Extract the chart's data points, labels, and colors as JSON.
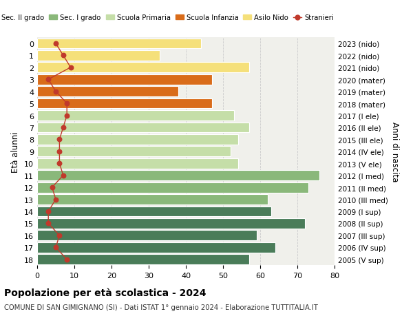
{
  "ages": [
    18,
    17,
    16,
    15,
    14,
    13,
    12,
    11,
    10,
    9,
    8,
    7,
    6,
    5,
    4,
    3,
    2,
    1,
    0
  ],
  "right_labels": [
    "2005 (V sup)",
    "2006 (IV sup)",
    "2007 (III sup)",
    "2008 (II sup)",
    "2009 (I sup)",
    "2010 (III med)",
    "2011 (II med)",
    "2012 (I med)",
    "2013 (V ele)",
    "2014 (IV ele)",
    "2015 (III ele)",
    "2016 (II ele)",
    "2017 (I ele)",
    "2018 (mater)",
    "2019 (mater)",
    "2020 (mater)",
    "2021 (nido)",
    "2022 (nido)",
    "2023 (nido)"
  ],
  "bar_values": [
    57,
    64,
    59,
    72,
    63,
    62,
    73,
    76,
    54,
    52,
    54,
    57,
    53,
    47,
    38,
    47,
    57,
    33,
    44
  ],
  "bar_colors": [
    "#4a7c59",
    "#4a7c59",
    "#4a7c59",
    "#4a7c59",
    "#4a7c59",
    "#8ab87a",
    "#8ab87a",
    "#8ab87a",
    "#c5dea8",
    "#c5dea8",
    "#c5dea8",
    "#c5dea8",
    "#c5dea8",
    "#d96c1a",
    "#d96c1a",
    "#d96c1a",
    "#f5e07a",
    "#f5e07a",
    "#f5e07a"
  ],
  "stranieri_values": [
    8,
    5,
    6,
    3,
    3,
    5,
    4,
    7,
    6,
    6,
    6,
    7,
    8,
    8,
    5,
    3,
    9,
    7,
    5
  ],
  "legend_labels": [
    "Sec. II grado",
    "Sec. I grado",
    "Scuola Primaria",
    "Scuola Infanzia",
    "Asilo Nido",
    "Stranieri"
  ],
  "legend_colors": [
    "#4a7c59",
    "#8ab87a",
    "#c5dea8",
    "#d96c1a",
    "#f5e07a",
    "#c0392b"
  ],
  "ylabel": "Età alunni",
  "right_axis_label": "Anni di nascita",
  "title": "Popolazione per età scolastica - 2024",
  "subtitle": "COMUNE DI SAN GIMIGNANO (SI) - Dati ISTAT 1° gennaio 2024 - Elaborazione TUTTITALIA.IT",
  "xlim": [
    0,
    80
  ],
  "background_color": "#ffffff",
  "plot_bg_color": "#f0f0eb"
}
